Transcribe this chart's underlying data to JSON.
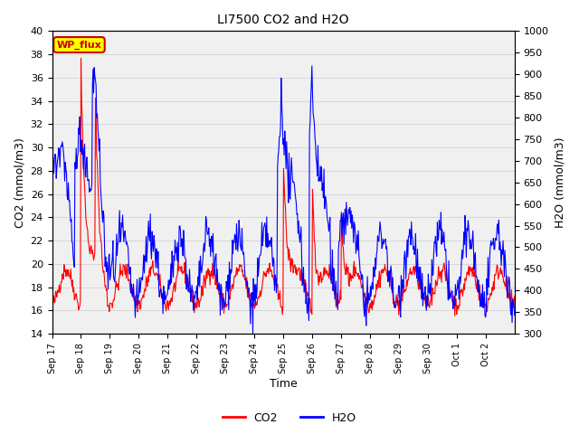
{
  "title": "LI7500 CO2 and H2O",
  "xlabel": "Time",
  "ylabel_left": "CO2 (mmol/m3)",
  "ylabel_right": "H2O (mmol/m3)",
  "ylim_left": [
    14,
    40
  ],
  "ylim_right": [
    300,
    1000
  ],
  "yticks_left": [
    14,
    16,
    18,
    20,
    22,
    24,
    26,
    28,
    30,
    32,
    34,
    36,
    38,
    40
  ],
  "yticks_right": [
    300,
    350,
    400,
    450,
    500,
    550,
    600,
    650,
    700,
    750,
    800,
    850,
    900,
    950,
    1000
  ],
  "co2_color": "#FF0000",
  "h2o_color": "#0000FF",
  "background_color": "#FFFFFF",
  "plot_bg_color": "#F0F0F0",
  "annotation_text": "WP_flux",
  "annotation_bg": "#FFFF00",
  "annotation_border": "#CC0000",
  "legend_co2": "CO2",
  "legend_h2o": "H2O",
  "tick_labels": [
    "Sep 17",
    "Sep 18",
    "Sep 19",
    "Sep 20",
    "Sep 21",
    "Sep 22",
    "Sep 23",
    "Sep 24",
    "Sep 25",
    "Sep 26",
    "Sep 27",
    "Sep 28",
    "Sep 29",
    "Sep 30",
    "Oct 1",
    "Oct 2"
  ],
  "tick_positions": [
    0,
    1,
    2,
    3,
    4,
    5,
    6,
    7,
    8,
    9,
    10,
    11,
    12,
    13,
    14,
    15
  ]
}
